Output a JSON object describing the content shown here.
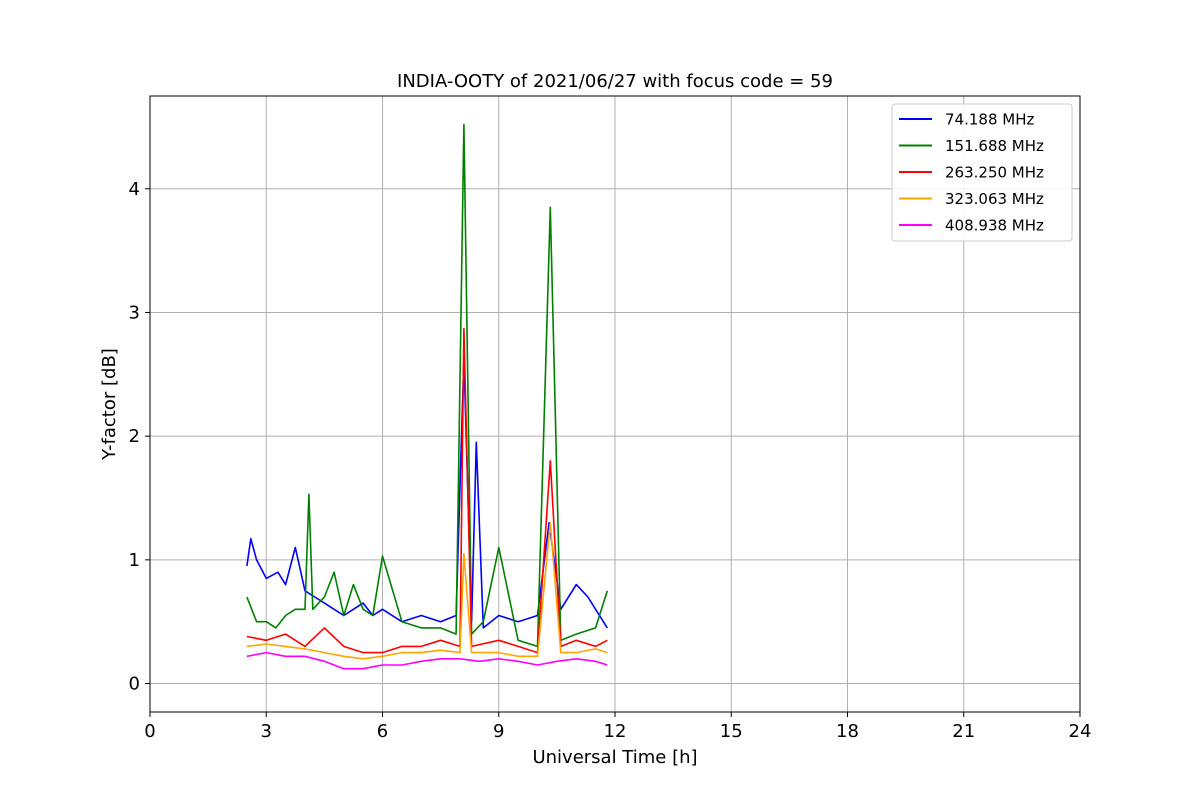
{
  "chart_data": {
    "type": "line",
    "title": "INDIA-OOTY of 2021/06/27 with focus code = 59",
    "xlabel": "Universal Time [h]",
    "ylabel": "Y-factor [dB]",
    "xlim": [
      0,
      24
    ],
    "ylim": [
      -0.23,
      4.75
    ],
    "xticks": [
      0,
      3,
      6,
      9,
      12,
      15,
      18,
      21,
      24
    ],
    "yticks": [
      0,
      1,
      2,
      3,
      4
    ],
    "grid": true,
    "legend_position": "upper right",
    "series": [
      {
        "name": " 74.188 MHz",
        "color": "#0000ff",
        "x": [
          2.5,
          2.6,
          2.75,
          3.0,
          3.3,
          3.5,
          3.75,
          4.0,
          4.25,
          4.5,
          4.75,
          5.0,
          5.25,
          5.5,
          5.75,
          6.0,
          6.5,
          7.0,
          7.5,
          7.9,
          8.1,
          8.3,
          8.42,
          8.6,
          9.0,
          9.5,
          10.0,
          10.3,
          10.6,
          11.0,
          11.3,
          11.8
        ],
        "y": [
          0.95,
          1.17,
          1.0,
          0.85,
          0.9,
          0.8,
          1.1,
          0.75,
          0.7,
          0.65,
          0.6,
          0.55,
          0.6,
          0.65,
          0.55,
          0.6,
          0.5,
          0.55,
          0.5,
          0.55,
          2.63,
          0.5,
          1.95,
          0.45,
          0.55,
          0.5,
          0.55,
          1.3,
          0.6,
          0.8,
          0.7,
          0.45
        ]
      },
      {
        "name": "151.688 MHz",
        "color": "#008000",
        "x": [
          2.5,
          2.75,
          3.0,
          3.25,
          3.5,
          3.75,
          4.0,
          4.1,
          4.2,
          4.5,
          4.75,
          5.0,
          5.25,
          5.5,
          5.75,
          6.0,
          6.5,
          7.0,
          7.5,
          7.9,
          8.1,
          8.3,
          8.6,
          9.0,
          9.5,
          10.0,
          10.33,
          10.6,
          11.0,
          11.5,
          11.8
        ],
        "y": [
          0.7,
          0.5,
          0.5,
          0.45,
          0.55,
          0.6,
          0.6,
          1.53,
          0.6,
          0.7,
          0.9,
          0.55,
          0.8,
          0.6,
          0.55,
          1.03,
          0.5,
          0.45,
          0.45,
          0.4,
          4.52,
          0.4,
          0.5,
          1.1,
          0.35,
          0.3,
          3.85,
          0.35,
          0.4,
          0.45,
          0.75
        ]
      },
      {
        "name": "263.250 MHz",
        "color": "#ff0000",
        "x": [
          2.5,
          3.0,
          3.5,
          4.0,
          4.5,
          5.0,
          5.5,
          6.0,
          6.5,
          7.0,
          7.5,
          8.0,
          8.1,
          8.3,
          9.0,
          9.5,
          10.0,
          10.33,
          10.6,
          11.0,
          11.5,
          11.8
        ],
        "y": [
          0.38,
          0.35,
          0.4,
          0.3,
          0.45,
          0.3,
          0.25,
          0.25,
          0.3,
          0.3,
          0.35,
          0.3,
          2.87,
          0.3,
          0.35,
          0.3,
          0.25,
          1.8,
          0.3,
          0.35,
          0.3,
          0.35
        ]
      },
      {
        "name": "323.063 MHz",
        "color": "#ffa500",
        "x": [
          2.5,
          3.0,
          3.5,
          4.0,
          4.5,
          5.0,
          5.5,
          6.0,
          6.5,
          7.0,
          7.5,
          8.0,
          8.1,
          8.3,
          9.0,
          9.5,
          10.0,
          10.33,
          10.6,
          11.0,
          11.5,
          11.8
        ],
        "y": [
          0.3,
          0.32,
          0.3,
          0.28,
          0.25,
          0.22,
          0.2,
          0.22,
          0.25,
          0.25,
          0.27,
          0.25,
          1.05,
          0.25,
          0.25,
          0.22,
          0.22,
          1.3,
          0.25,
          0.25,
          0.28,
          0.25
        ]
      },
      {
        "name": "408.938 MHz",
        "color": "#ff00ff",
        "x": [
          2.5,
          3.0,
          3.5,
          4.0,
          4.5,
          5.0,
          5.5,
          6.0,
          6.5,
          7.0,
          7.5,
          8.0,
          8.5,
          9.0,
          9.5,
          10.0,
          10.5,
          11.0,
          11.5,
          11.8
        ],
        "y": [
          0.22,
          0.25,
          0.22,
          0.22,
          0.18,
          0.12,
          0.12,
          0.15,
          0.15,
          0.18,
          0.2,
          0.2,
          0.18,
          0.2,
          0.18,
          0.15,
          0.18,
          0.2,
          0.18,
          0.15
        ]
      }
    ]
  }
}
